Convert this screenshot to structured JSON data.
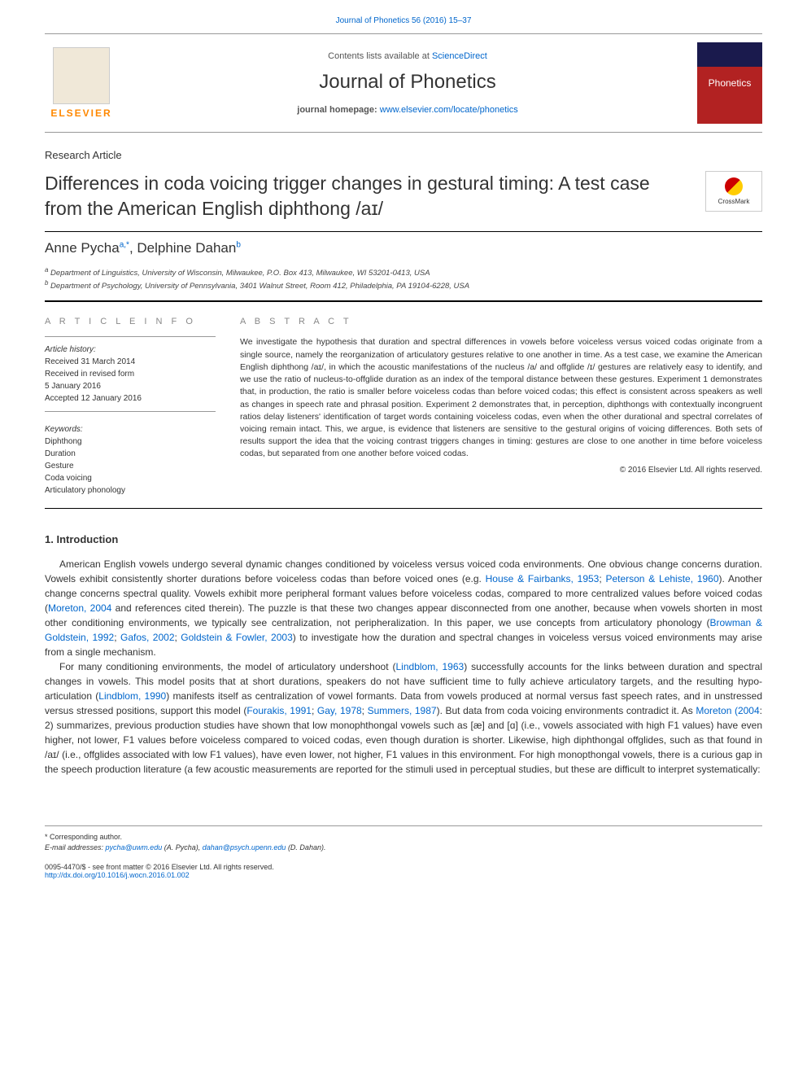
{
  "header": {
    "citation": "Journal of Phonetics 56 (2016) 15–37",
    "contents_prefix": "Contents lists available at ",
    "contents_link": "ScienceDirect",
    "journal_title": "Journal of Phonetics",
    "homepage_label": "journal homepage: ",
    "homepage_url": "www.elsevier.com/locate/phonetics",
    "elsevier": "ELSEVIER",
    "cover_text": "Phonetics",
    "crossmark": "CrossMark"
  },
  "article": {
    "type": "Research Article",
    "title": "Differences in coda voicing trigger changes in gestural timing: A test case from the American English diphthong /aɪ/",
    "authors": {
      "a1_name": "Anne Pycha",
      "a1_sup": "a,",
      "a1_star": "*",
      "sep": ", ",
      "a2_name": "Delphine Dahan",
      "a2_sup": "b"
    },
    "affiliations": {
      "a": "Department of Linguistics, University of Wisconsin, Milwaukee, P.O. Box 413, Milwaukee, WI 53201-0413, USA",
      "b": "Department of Psychology, University of Pennsylvania, 3401 Walnut Street, Room 412, Philadelphia, PA 19104-6228, USA"
    }
  },
  "info": {
    "info_header": "A R T I C L E  I N F O",
    "history_label": "Article history:",
    "received": "Received 31 March 2014",
    "revised": "Received in revised form",
    "revised_date": "5 January 2016",
    "accepted": "Accepted 12 January 2016",
    "keywords_label": "Keywords:",
    "kw1": "Diphthong",
    "kw2": "Duration",
    "kw3": "Gesture",
    "kw4": "Coda voicing",
    "kw5": "Articulatory phonology"
  },
  "abstract": {
    "header": "A B S T R A C T",
    "text": "We investigate the hypothesis that duration and spectral differences in vowels before voiceless versus voiced codas originate from a single source, namely the reorganization of articulatory gestures relative to one another in time. As a test case, we examine the American English diphthong /aɪ/, in which the acoustic manifestations of the nucleus /a/ and offglide /ɪ/ gestures are relatively easy to identify, and we use the ratio of nucleus-to-offglide duration as an index of the temporal distance between these gestures. Experiment 1 demonstrates that, in production, the ratio is smaller before voiceless codas than before voiced codas; this effect is consistent across speakers as well as changes in speech rate and phrasal position. Experiment 2 demonstrates that, in perception, diphthongs with contextually incongruent ratios delay listeners' identification of target words containing voiceless codas, even when the other durational and spectral correlates of voicing remain intact. This, we argue, is evidence that listeners are sensitive to the gestural origins of voicing differences. Both sets of results support the idea that the voicing contrast triggers changes in timing: gestures are close to one another in time before voiceless codas, but separated from one another before voiced codas.",
    "copyright": "© 2016 Elsevier Ltd. All rights reserved."
  },
  "intro": {
    "heading": "1. Introduction",
    "p1a": "American English vowels undergo several dynamic changes conditioned by voiceless versus voiced coda environments. One obvious change concerns duration. Vowels exhibit consistently shorter durations before voiceless codas than before voiced ones (e.g. ",
    "p1_ref1": "House & Fairbanks, 1953",
    "p1b": "; ",
    "p1_ref2": "Peterson & Lehiste, 1960",
    "p1c": "). Another change concerns spectral quality. Vowels exhibit more peripheral formant values before voiceless codas, compared to more centralized values before voiced codas (",
    "p1_ref3": "Moreton, 2004",
    "p1d": " and references cited therein). The puzzle is that these two changes appear disconnected from one another, because when vowels shorten in most other conditioning environments, we typically see centralization, not peripheralization. In this paper, we use concepts from articulatory phonology (",
    "p1_ref4": "Browman & Goldstein, 1992",
    "p1e": "; ",
    "p1_ref5": "Gafos, 2002",
    "p1f": "; ",
    "p1_ref6": "Goldstein & Fowler, 2003",
    "p1g": ") to investigate how the duration and spectral changes in voiceless versus voiced environments may arise from a single mechanism.",
    "p2a": "For many conditioning environments, the model of articulatory undershoot (",
    "p2_ref1": "Lindblom, 1963",
    "p2b": ") successfully accounts for the links between duration and spectral changes in vowels. This model posits that at short durations, speakers do not have sufficient time to fully achieve articulatory targets, and the resulting hypo-articulation (",
    "p2_ref2": "Lindblom, 1990",
    "p2c": ") manifests itself as centralization of vowel formants. Data from vowels produced at normal versus fast speech rates, and in unstressed versus stressed positions, support this model (",
    "p2_ref3": "Fourakis, 1991",
    "p2d": "; ",
    "p2_ref4": "Gay, 1978",
    "p2e": "; ",
    "p2_ref5": "Summers, 1987",
    "p2f": "). But data from coda voicing environments contradict it. As ",
    "p2_ref6": "Moreton (2004",
    "p2g": ": 2) summarizes, previous production studies have shown that low monophthongal vowels such as [æ] and [ɑ] (i.e., vowels associated with high F1 values) have even higher, not lower, F1 values before voiceless compared to voiced codas, even though duration is shorter. Likewise, high diphthongal offglides, such as that found in /aɪ/ (i.e., offglides associated with low F1 values), have even lower, not higher, F1 values in this environment. For high monopthongal vowels, there is a curious gap in the speech production literature (a few acoustic measurements are reported for the stimuli used in perceptual studies, but these are difficult to interpret systematically:"
  },
  "footer": {
    "corresponding": "* Corresponding author.",
    "emails_label": "E-mail addresses: ",
    "email1": "pycha@uwm.edu",
    "email1_name": " (A. Pycha), ",
    "email2": "dahan@psych.upenn.edu",
    "email2_name": " (D. Dahan).",
    "issn": "0095-4470/$ - see front matter © 2016 Elsevier Ltd. All rights reserved.",
    "doi": "http://dx.doi.org/10.1016/j.wocn.2016.01.002"
  }
}
